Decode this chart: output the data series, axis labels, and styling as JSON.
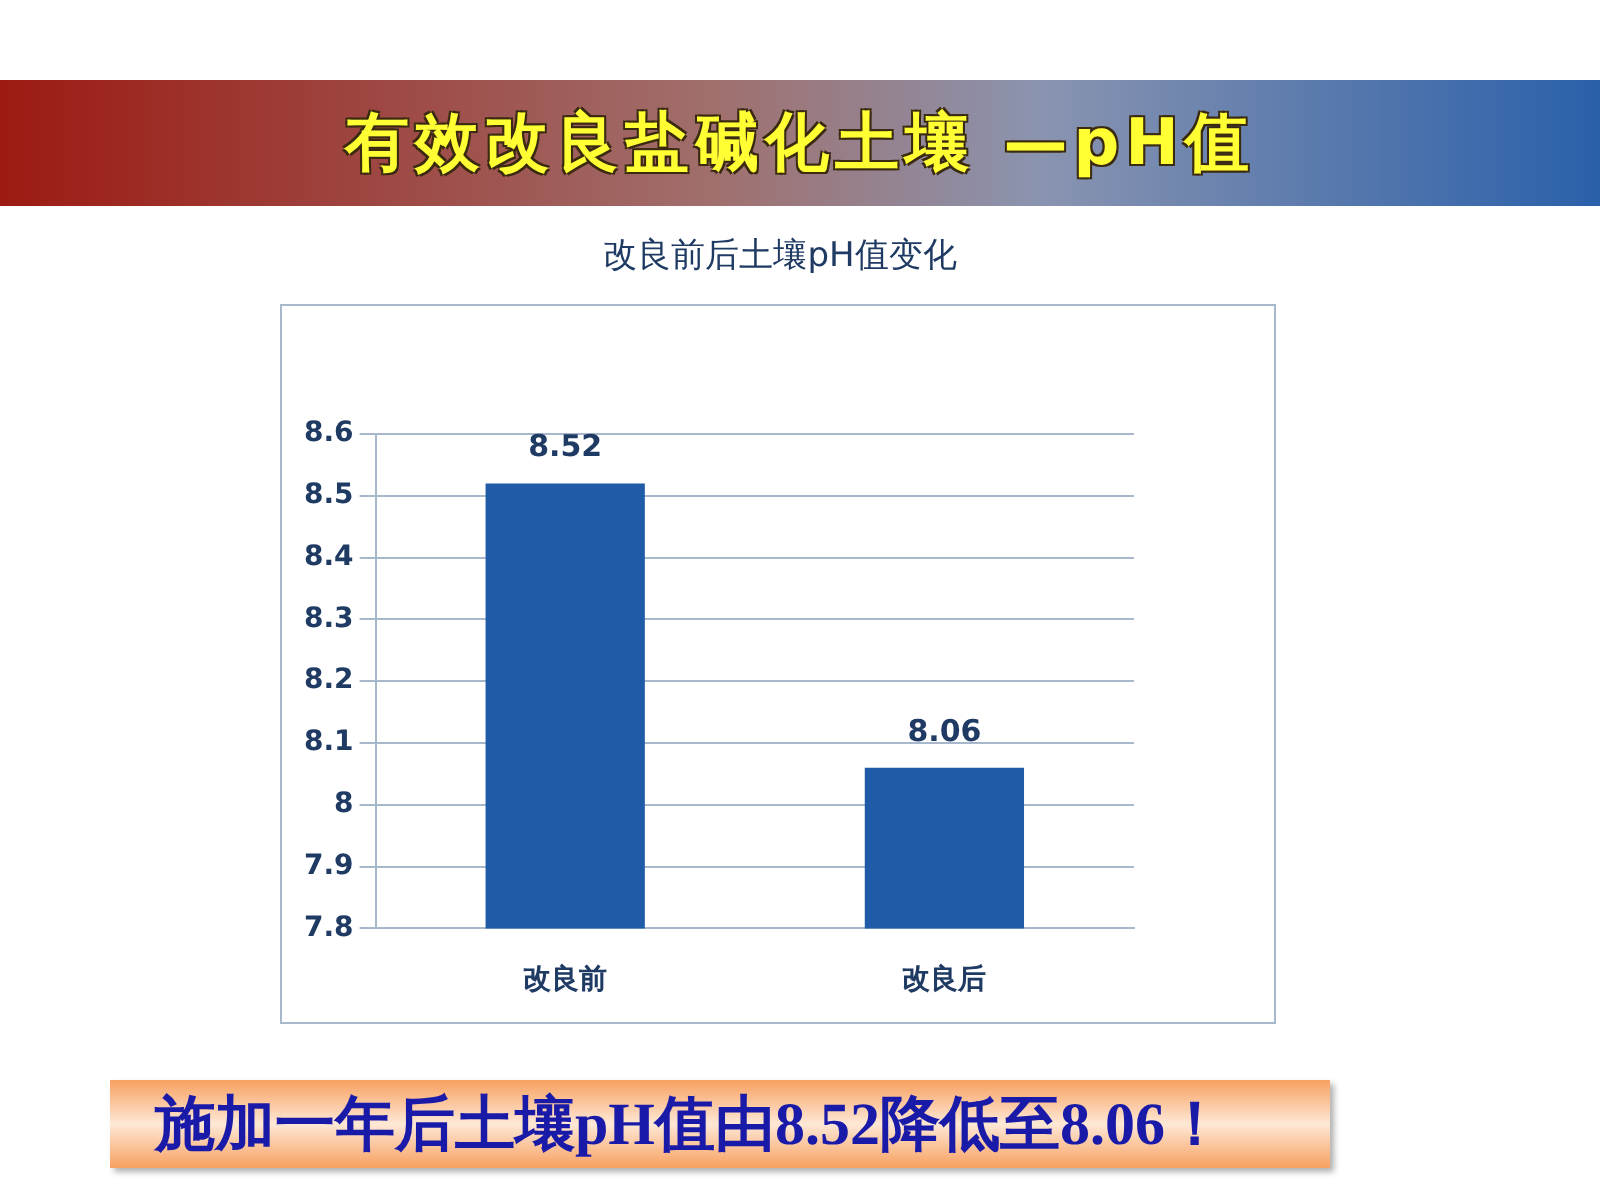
{
  "chart_data": {
    "type": "bar",
    "title": "有效改良盐碱化土壤 —pH值",
    "subtitle": "改良前后土壤pH值变化",
    "categories": [
      "改良前",
      "改良后"
    ],
    "values": [
      8.52,
      8.06
    ],
    "color": "#1f5ba6",
    "ylim": [
      7.8,
      8.6
    ],
    "yticks": [
      7.8,
      7.9,
      8,
      8.1,
      8.2,
      8.3,
      8.4,
      8.5,
      8.6
    ],
    "grid": "y",
    "data_labels": true,
    "annotations": [
      "施加一年后土壤pH值由8.52降低至8.06！"
    ]
  }
}
